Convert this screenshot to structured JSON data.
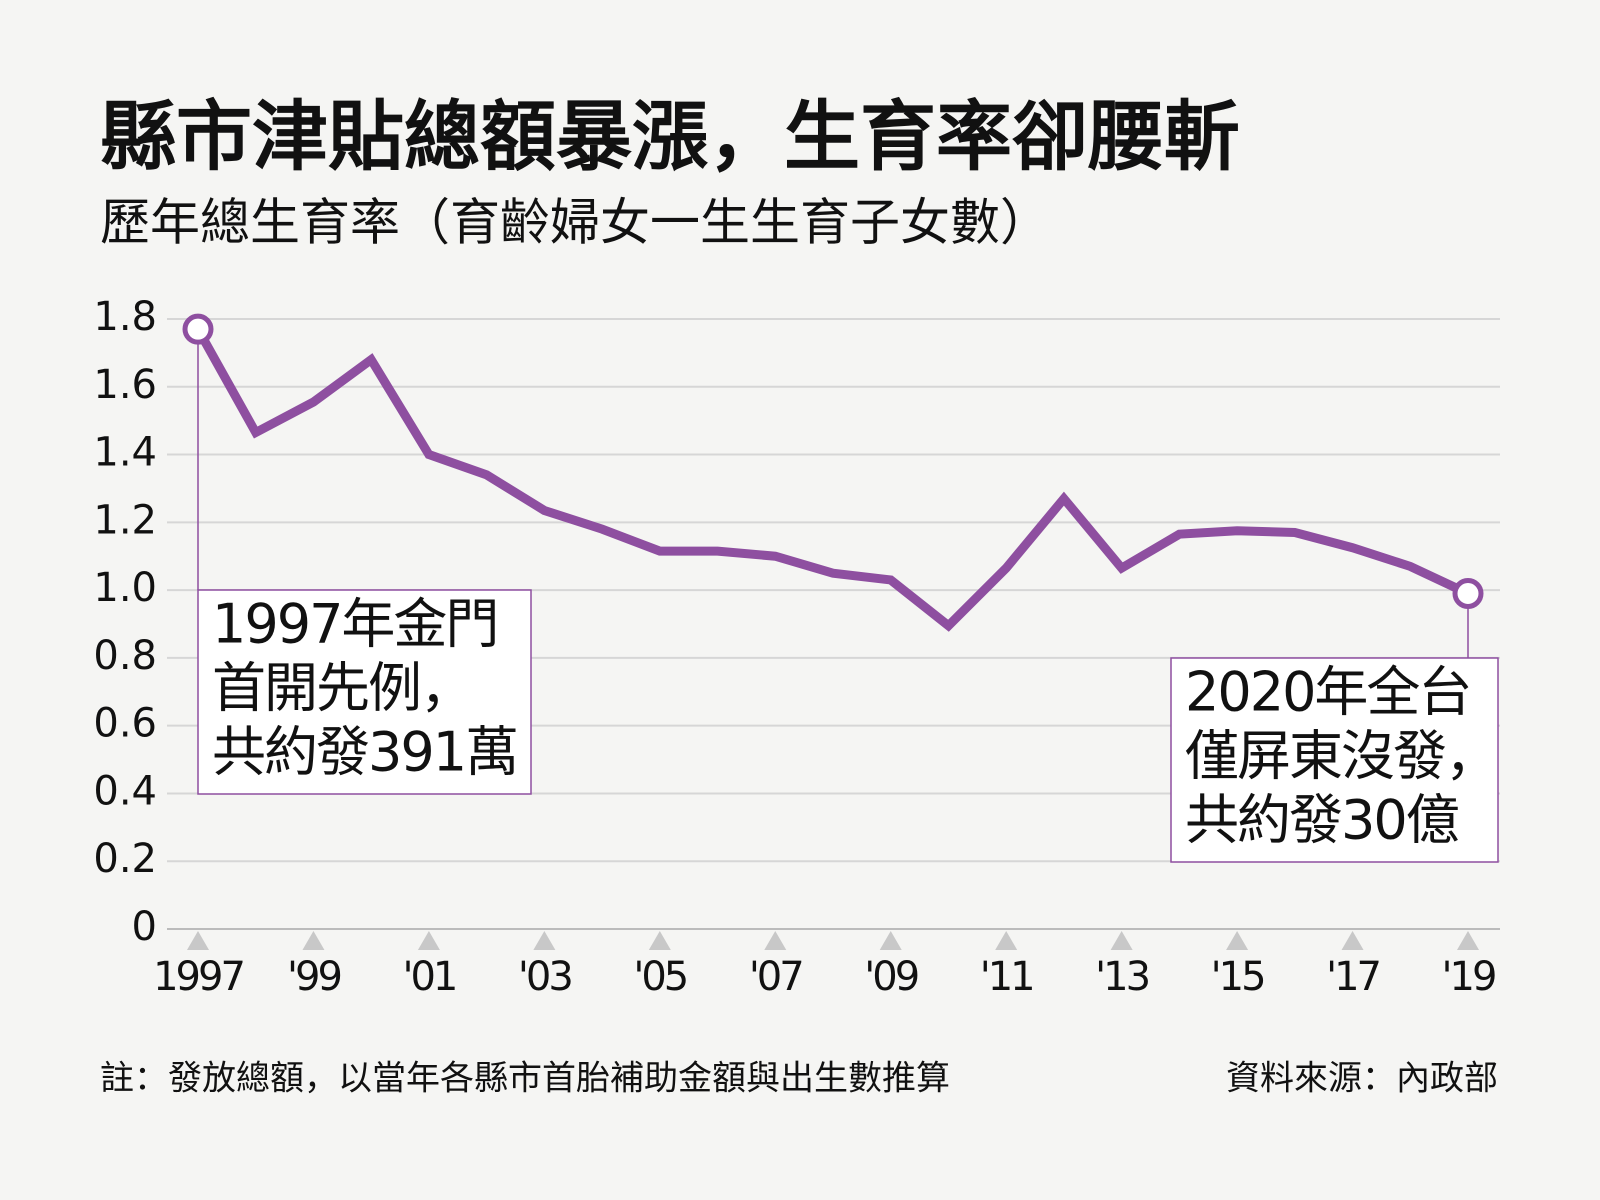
{
  "chart_data": {
    "type": "line",
    "title": "縣市津貼總額暴漲，生育率卻腰斬",
    "subtitle": "歷年總生育率（育齡婦女一生生育子女數）",
    "categories": [
      "1997",
      null,
      "'99",
      null,
      "'01",
      null,
      "'03",
      null,
      "'05",
      null,
      "'07",
      null,
      "'09",
      null,
      "'11",
      null,
      "'13",
      null,
      "'15",
      null,
      "'17",
      null,
      "'19"
    ],
    "series": [
      {
        "name": "總生育率",
        "color": "#8e4fa0",
        "values": [
          1.77,
          1.465,
          1.555,
          1.68,
          1.4,
          1.34,
          1.235,
          1.18,
          1.115,
          1.115,
          1.1,
          1.05,
          1.03,
          0.895,
          1.065,
          1.27,
          1.065,
          1.165,
          1.175,
          1.17,
          1.125,
          1.07,
          0.99
        ]
      }
    ],
    "ylim": [
      0,
      1.8
    ],
    "yticks": [
      0,
      0.2,
      0.4,
      0.6,
      0.8,
      {
        "value": 1,
        "label": "1.0"
      },
      1.2,
      1.4,
      1.6,
      1.8
    ],
    "grid": true,
    "annotations": [
      {
        "lines": [
          "1997年金門",
          "首開先例，",
          "共約發391萬"
        ]
      },
      {
        "lines": [
          "2020年全台",
          "僅屏東沒發，",
          "共約發30億"
        ]
      }
    ],
    "note": "註：發放總額，以當年各縣市首胎補助金額與出生數推算",
    "source": "資料來源：內政部"
  }
}
